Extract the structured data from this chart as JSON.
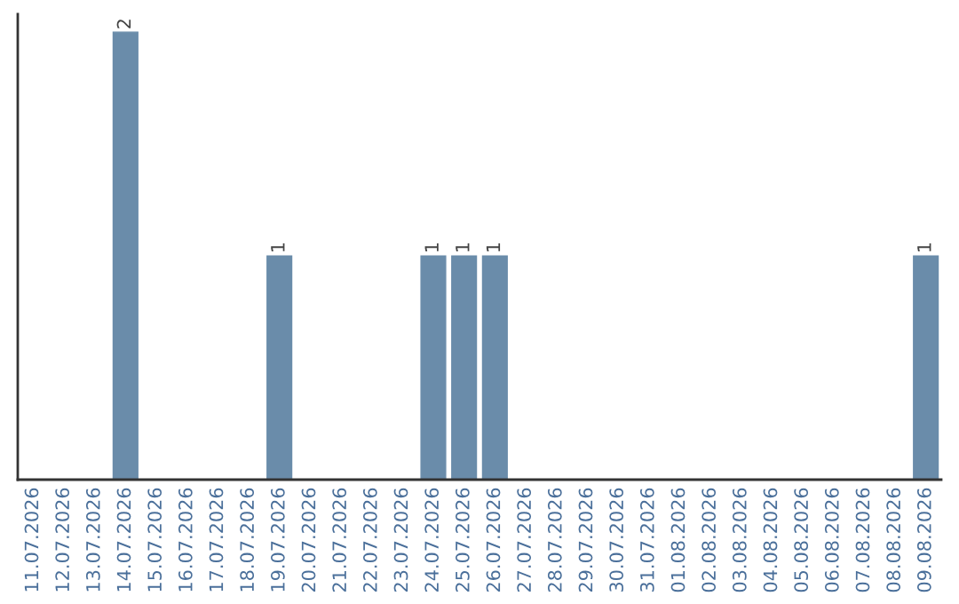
{
  "chart_data": {
    "type": "bar",
    "categories": [
      "11.07.2026",
      "12.07.2026",
      "13.07.2026",
      "14.07.2026",
      "15.07.2026",
      "16.07.2026",
      "17.07.2026",
      "18.07.2026",
      "19.07.2026",
      "20.07.2026",
      "21.07.2026",
      "22.07.2026",
      "23.07.2026",
      "24.07.2026",
      "25.07.2026",
      "26.07.2026",
      "27.07.2026",
      "28.07.2026",
      "29.07.2026",
      "30.07.2026",
      "31.07.2026",
      "01.08.2026",
      "02.08.2026",
      "03.08.2026",
      "04.08.2026",
      "05.08.2026",
      "06.08.2026",
      "07.08.2026",
      "08.08.2026",
      "09.08.2026"
    ],
    "values": [
      0,
      0,
      0,
      2,
      0,
      0,
      0,
      0,
      1,
      0,
      0,
      0,
      0,
      1,
      1,
      1,
      0,
      0,
      0,
      0,
      0,
      0,
      0,
      0,
      0,
      0,
      0,
      0,
      0,
      1
    ],
    "value_labels": [
      null,
      null,
      null,
      "2",
      null,
      null,
      null,
      null,
      "1",
      null,
      null,
      null,
      null,
      "1",
      "1",
      "1",
      null,
      null,
      null,
      null,
      null,
      null,
      null,
      null,
      null,
      null,
      null,
      null,
      null,
      "1"
    ],
    "color": "#6a8caa",
    "ylim": [
      0,
      2.08
    ],
    "tick_labels": "x",
    "grid": false,
    "legend": false
  }
}
